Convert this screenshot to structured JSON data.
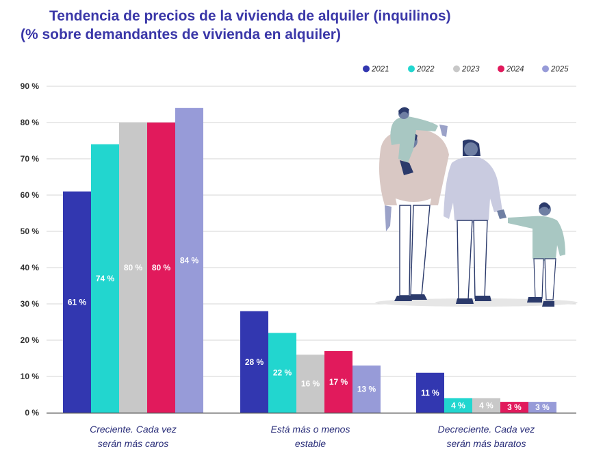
{
  "title_line1": "Tendencia de precios de la vivienda de alquiler (inquilinos)",
  "title_line2": "(% sobre demandantes de vivienda en alquiler)",
  "chart_data": {
    "type": "bar",
    "title": "Tendencia de precios de la vivienda de alquiler (inquilinos) (% sobre demandantes de vivienda en alquiler)",
    "categories": [
      [
        "Creciente. Cada vez",
        "serán más caros"
      ],
      [
        "Está más o menos",
        "estable"
      ],
      [
        "Decreciente. Cada vez",
        "serán más baratos"
      ]
    ],
    "series": [
      {
        "name": "2021",
        "color": "#3237b0",
        "values": [
          61,
          28,
          11
        ],
        "labels": [
          "61 %",
          "28 %",
          "11 %"
        ]
      },
      {
        "name": "2022",
        "color": "#22d6cf",
        "values": [
          74,
          22,
          4
        ],
        "labels": [
          "74 %",
          "22 %",
          "4 %"
        ]
      },
      {
        "name": "2023",
        "color": "#c8c8c8",
        "values": [
          80,
          16,
          4
        ],
        "labels": [
          "80 %",
          "16 %",
          "4 %"
        ]
      },
      {
        "name": "2024",
        "color": "#e11a5c",
        "values": [
          80,
          17,
          3
        ],
        "labels": [
          "80 %",
          "17 %",
          "3 %"
        ]
      },
      {
        "name": "2025",
        "color": "#979bd8",
        "values": [
          84,
          13,
          3
        ],
        "labels": [
          "84 %",
          "13 %",
          "3 %"
        ]
      }
    ],
    "yticks": [
      "0 %",
      "10 %",
      "20 %",
      "30 %",
      "40 %",
      "50 %",
      "60 %",
      "70 %",
      "80 %",
      "90 %"
    ],
    "ylim": [
      0,
      90
    ],
    "grid": true,
    "legend": "top-right"
  }
}
